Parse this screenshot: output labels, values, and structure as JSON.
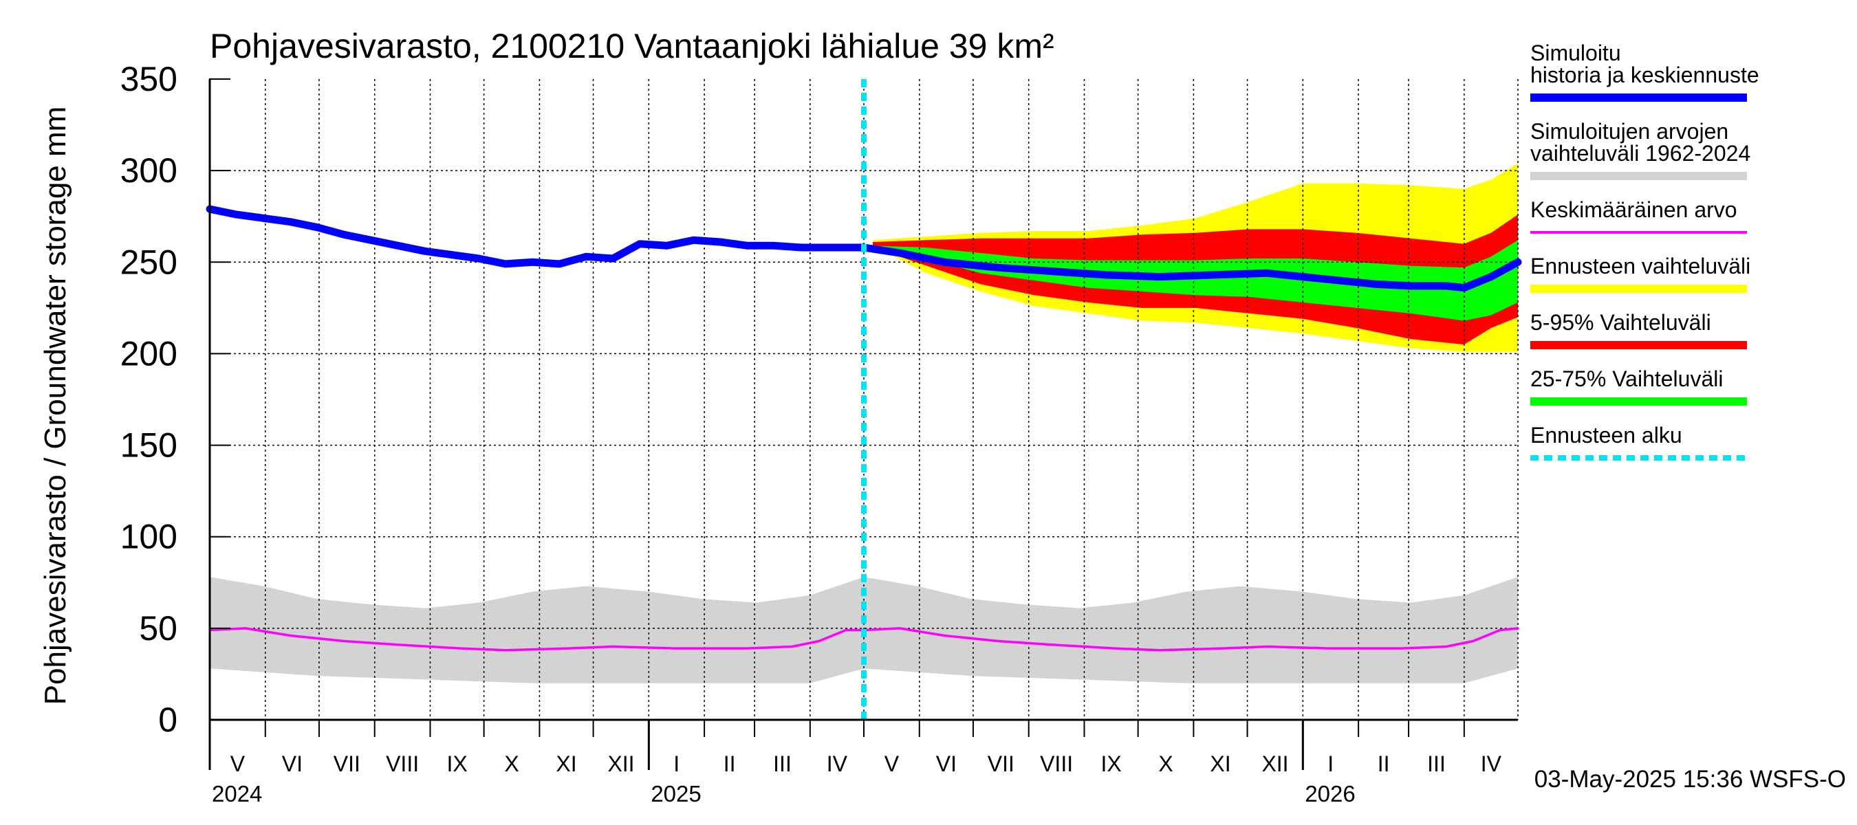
{
  "chart_data": {
    "type": "area",
    "title": "Pohjavesivarasto, 2100210 Vantaanjoki lähialue 39 km²",
    "ylabel": "Pohjavesivarasto / Groundwater storage   mm",
    "ylim": [
      0,
      350
    ],
    "yticks": [
      0,
      50,
      100,
      150,
      200,
      250,
      300,
      350
    ],
    "x_range_days": [
      0,
      730
    ],
    "months": [
      {
        "label": "V",
        "start": 0
      },
      {
        "label": "VI",
        "start": 31
      },
      {
        "label": "VII",
        "start": 61
      },
      {
        "label": "VIII",
        "start": 92
      },
      {
        "label": "IX",
        "start": 123
      },
      {
        "label": "X",
        "start": 153
      },
      {
        "label": "XI",
        "start": 184
      },
      {
        "label": "XII",
        "start": 214
      },
      {
        "label": "I",
        "start": 245
      },
      {
        "label": "II",
        "start": 276
      },
      {
        "label": "III",
        "start": 304
      },
      {
        "label": "IV",
        "start": 335
      },
      {
        "label": "V",
        "start": 365
      },
      {
        "label": "VI",
        "start": 396
      },
      {
        "label": "VII",
        "start": 426
      },
      {
        "label": "VIII",
        "start": 457
      },
      {
        "label": "IX",
        "start": 488
      },
      {
        "label": "X",
        "start": 518
      },
      {
        "label": "XI",
        "start": 549
      },
      {
        "label": "XII",
        "start": 579
      },
      {
        "label": "I",
        "start": 610
      },
      {
        "label": "II",
        "start": 641
      },
      {
        "label": "III",
        "start": 669
      },
      {
        "label": "IV",
        "start": 700
      }
    ],
    "years": [
      {
        "label": "2024",
        "day": 0
      },
      {
        "label": "2025",
        "day": 245
      },
      {
        "label": "2026",
        "day": 610
      }
    ],
    "forecast_start_day": 365,
    "series": {
      "history": {
        "name": "Simuloitu historia ja keskiennuste",
        "color": "#0000ff",
        "x": [
          0,
          15,
          30,
          45,
          60,
          75,
          90,
          105,
          120,
          135,
          150,
          165,
          180,
          195,
          210,
          225,
          240,
          255,
          270,
          285,
          300,
          315,
          330,
          345,
          365
        ],
        "y": [
          279,
          276,
          274,
          272,
          269,
          265,
          262,
          259,
          256,
          254,
          252,
          249,
          250,
          249,
          253,
          252,
          260,
          259,
          262,
          261,
          259,
          259,
          258,
          258,
          258
        ]
      },
      "forecast_mean": {
        "x": [
          365,
          385,
          410,
          440,
          470,
          500,
          530,
          560,
          590,
          620,
          650,
          670,
          690,
          700,
          715,
          730
        ],
        "y": [
          258,
          255,
          250,
          247,
          245,
          243,
          242,
          243,
          244,
          241,
          238,
          237,
          237,
          236,
          242,
          250
        ]
      },
      "range_full": {
        "name": "Ennusteen vaihteluväli",
        "color": "#ffff00",
        "x": [
          370,
          400,
          430,
          460,
          490,
          520,
          550,
          580,
          610,
          640,
          670,
          700,
          715,
          730
        ],
        "lower": [
          259,
          244,
          234,
          226,
          222,
          218,
          217,
          214,
          211,
          207,
          203,
          201,
          201,
          201
        ],
        "upper": [
          262,
          264,
          266,
          267,
          267,
          270,
          274,
          283,
          293,
          293,
          292,
          290,
          295,
          304
        ]
      },
      "range_5_95": {
        "name": "5-95% Vaihteluväli",
        "color": "#ff0000",
        "x": [
          370,
          400,
          430,
          460,
          490,
          520,
          550,
          580,
          610,
          640,
          670,
          700,
          715,
          730
        ],
        "lower": [
          258,
          248,
          238,
          232,
          228,
          225,
          225,
          222,
          219,
          214,
          208,
          205,
          214,
          220
        ],
        "upper": [
          261,
          262,
          263,
          263,
          263,
          265,
          266,
          268,
          268,
          266,
          263,
          260,
          266,
          276
        ]
      },
      "range_25_75": {
        "name": "25-75% Vaihteluväli",
        "color": "#00ff00",
        "x": [
          370,
          400,
          430,
          460,
          490,
          520,
          550,
          580,
          610,
          640,
          670,
          700,
          715,
          730
        ],
        "lower": [
          258,
          252,
          244,
          240,
          236,
          234,
          232,
          231,
          228,
          225,
          222,
          218,
          221,
          228
        ],
        "upper": [
          259,
          258,
          255,
          252,
          251,
          251,
          251,
          252,
          252,
          250,
          248,
          247,
          253,
          262
        ]
      },
      "sim_range": {
        "name": "Simuloitujen arvojen vaihteluväli 1962-2024",
        "color": "#d3d3d3",
        "x": [
          0,
          30,
          60,
          90,
          120,
          150,
          180,
          210,
          245,
          275,
          305,
          335,
          365,
          395,
          425,
          455,
          485,
          515,
          545,
          575,
          610,
          640,
          670,
          700,
          730
        ],
        "lower": [
          28,
          26,
          24,
          23,
          22,
          21,
          20,
          20,
          20,
          20,
          20,
          20,
          28,
          26,
          24,
          23,
          22,
          21,
          20,
          20,
          20,
          20,
          20,
          20,
          28
        ],
        "upper": [
          78,
          73,
          66,
          63,
          61,
          64,
          70,
          73,
          70,
          66,
          64,
          68,
          78,
          73,
          66,
          63,
          61,
          64,
          70,
          73,
          70,
          66,
          64,
          68,
          78
        ]
      },
      "mean": {
        "name": "Keskimääräinen arvo",
        "color": "#ff00ff",
        "x": [
          0,
          20,
          45,
          75,
          105,
          140,
          165,
          200,
          225,
          260,
          300,
          325,
          340,
          355,
          365,
          385,
          410,
          440,
          470,
          505,
          530,
          565,
          590,
          625,
          665,
          690,
          705,
          720,
          730
        ],
        "y": [
          49,
          50,
          46,
          43,
          41,
          39,
          38,
          39,
          40,
          39,
          39,
          40,
          43,
          49,
          49,
          50,
          46,
          43,
          41,
          39,
          38,
          39,
          40,
          39,
          39,
          40,
          43,
          49,
          50
        ]
      }
    },
    "legend": [
      {
        "text": "Simuloitu historia ja keskiennuste",
        "color": "#0000ff",
        "style": "thick"
      },
      {
        "text": "Simuloitujen arvojen vaihteluväli 1962-2024",
        "color": "#d3d3d3",
        "style": "thick"
      },
      {
        "text": "Keskimääräinen arvo",
        "color": "#ff00ff",
        "style": "thin"
      },
      {
        "text": "Ennusteen vaihteluväli",
        "color": "#ffff00",
        "style": "thick"
      },
      {
        "text": "5-95% Vaihteluväli",
        "color": "#ff0000",
        "style": "thick"
      },
      {
        "text": "25-75% Vaihteluväli",
        "color": "#00ff00",
        "style": "thick"
      },
      {
        "text": "Ennusteen alku",
        "color": "#00e5ee",
        "style": "dashed"
      }
    ],
    "footer": "03-May-2025 15:36 WSFS-O"
  }
}
